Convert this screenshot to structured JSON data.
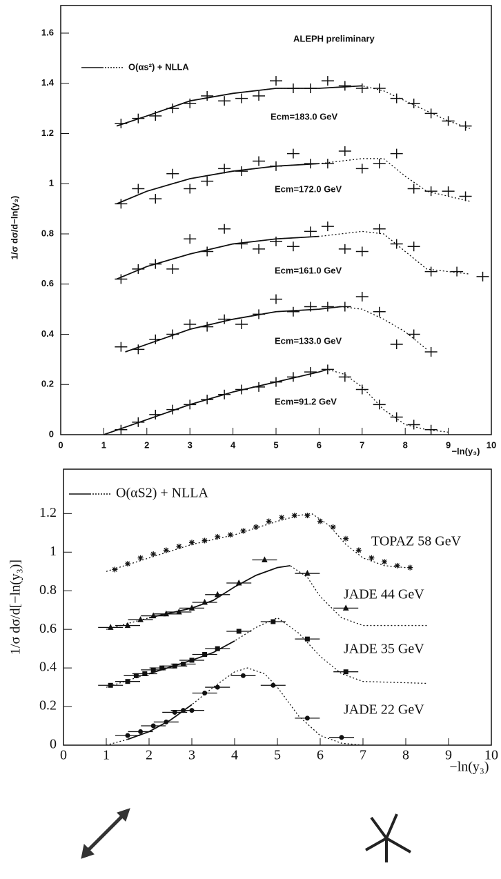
{
  "chart_data": [
    {
      "type": "scatter",
      "annotation": "ALEPH preliminary",
      "legend": "O(αs²) + NLLA",
      "x_label": "−ln(y₃)",
      "y_label": "1/σ dσ/d−ln(y₃)",
      "xlim": [
        0,
        10
      ],
      "ylim": [
        0,
        1.71
      ],
      "xticks": [
        0,
        1,
        2,
        3,
        4,
        5,
        6,
        7,
        8,
        9,
        10
      ],
      "yticks": [
        0,
        0.2,
        0.4,
        0.6,
        0.8,
        1,
        1.2,
        1.4,
        1.6
      ],
      "series": [
        {
          "name": "Ecm=183.0 GeV",
          "marker": "cross",
          "color": "#111111",
          "x": [
            1.4,
            1.8,
            2.2,
            2.6,
            3.0,
            3.4,
            3.8,
            4.2,
            4.6,
            5.0,
            5.4,
            5.8,
            6.2,
            6.6,
            7.0,
            7.4,
            7.8,
            8.2,
            8.6,
            9.0,
            9.4
          ],
          "values": [
            1.24,
            1.26,
            1.27,
            1.3,
            1.32,
            1.35,
            1.33,
            1.34,
            1.35,
            1.41,
            1.38,
            1.38,
            1.41,
            1.39,
            1.38,
            1.38,
            1.34,
            1.32,
            1.28,
            1.25,
            1.23
          ]
        },
        {
          "name": "Ecm=172.0 GeV",
          "marker": "cross",
          "color": "#111111",
          "x": [
            1.4,
            1.8,
            2.2,
            2.6,
            3.0,
            3.4,
            3.8,
            4.2,
            4.6,
            5.0,
            5.4,
            5.8,
            6.2,
            6.6,
            7.0,
            7.4,
            7.8,
            8.2,
            8.6,
            9.0,
            9.4
          ],
          "values": [
            0.92,
            0.98,
            0.94,
            1.04,
            0.98,
            1.01,
            1.06,
            1.05,
            1.09,
            1.07,
            1.12,
            1.08,
            1.08,
            1.13,
            1.06,
            1.08,
            1.12,
            0.98,
            0.97,
            0.97,
            0.95
          ]
        },
        {
          "name": "Ecm=161.0 GeV",
          "marker": "cross",
          "color": "#111111",
          "x": [
            1.4,
            1.8,
            2.2,
            2.6,
            3.0,
            3.4,
            3.8,
            4.2,
            4.6,
            5.0,
            5.4,
            5.8,
            6.2,
            6.6,
            7.0,
            7.4,
            7.8,
            8.2,
            8.6,
            9.2,
            9.8
          ],
          "values": [
            0.62,
            0.66,
            0.68,
            0.66,
            0.78,
            0.73,
            0.82,
            0.76,
            0.74,
            0.77,
            0.75,
            0.81,
            0.83,
            0.74,
            0.73,
            0.82,
            0.76,
            0.75,
            0.65,
            0.65,
            0.63
          ]
        },
        {
          "name": "Ecm=133.0 GeV",
          "marker": "cross",
          "color": "#111111",
          "x": [
            1.4,
            1.8,
            2.2,
            2.6,
            3.0,
            3.4,
            3.8,
            4.2,
            4.6,
            5.0,
            5.4,
            5.8,
            6.2,
            6.6,
            7.0,
            7.4,
            7.8,
            8.2,
            8.6
          ],
          "values": [
            0.35,
            0.34,
            0.38,
            0.4,
            0.44,
            0.43,
            0.46,
            0.44,
            0.48,
            0.54,
            0.49,
            0.51,
            0.51,
            0.51,
            0.55,
            0.49,
            0.36,
            0.4,
            0.33
          ]
        },
        {
          "name": "Ecm=91.2 GeV",
          "marker": "cross",
          "color": "#111111",
          "x": [
            1.4,
            1.8,
            2.2,
            2.6,
            3.0,
            3.4,
            3.8,
            4.2,
            4.6,
            5.0,
            5.4,
            5.8,
            6.2,
            6.6,
            7.0,
            7.4,
            7.8,
            8.2,
            8.6
          ],
          "values": [
            0.02,
            0.05,
            0.08,
            0.1,
            0.12,
            0.14,
            0.16,
            0.18,
            0.19,
            0.21,
            0.23,
            0.25,
            0.26,
            0.23,
            0.18,
            0.12,
            0.07,
            0.04,
            0.02
          ]
        }
      ],
      "curves": [
        {
          "x": [
            1.3,
            2,
            3,
            4,
            5,
            6,
            7,
            7.5,
            8,
            8.5,
            9,
            9.5
          ],
          "values": [
            1.23,
            1.27,
            1.33,
            1.36,
            1.38,
            1.38,
            1.39,
            1.37,
            1.33,
            1.29,
            1.25,
            1.22
          ],
          "fit_range": [
            1.3,
            7
          ]
        },
        {
          "x": [
            1.3,
            2,
            3,
            4,
            5,
            6,
            7,
            7.5,
            8,
            8.5,
            9,
            9.5
          ],
          "values": [
            0.92,
            0.97,
            1.02,
            1.05,
            1.07,
            1.08,
            1.1,
            1.1,
            1.03,
            0.97,
            0.95,
            0.93
          ],
          "fit_range": [
            1.3,
            6
          ]
        },
        {
          "x": [
            1.3,
            2,
            3,
            4,
            5,
            6,
            7,
            7.5,
            8,
            8.5,
            9,
            9.5
          ],
          "values": [
            0.62,
            0.67,
            0.72,
            0.76,
            0.78,
            0.79,
            0.81,
            0.8,
            0.73,
            0.66,
            0.65,
            0.64
          ],
          "fit_range": [
            1.3,
            6
          ]
        },
        {
          "x": [
            1.5,
            2,
            3,
            4,
            5,
            6,
            6.5,
            7,
            7.5,
            8,
            8.5
          ],
          "values": [
            0.33,
            0.36,
            0.42,
            0.46,
            0.49,
            0.5,
            0.51,
            0.5,
            0.46,
            0.41,
            0.34
          ],
          "fit_range": [
            1.5,
            6.5
          ]
        },
        {
          "x": [
            1.0,
            2,
            3,
            4,
            5,
            6,
            6.2,
            6.6,
            7,
            7.5,
            8,
            8.5,
            9
          ],
          "values": [
            0.0,
            0.06,
            0.12,
            0.17,
            0.21,
            0.25,
            0.26,
            0.24,
            0.19,
            0.1,
            0.04,
            0.02,
            0.01
          ],
          "fit_range": [
            1.0,
            6.2
          ]
        }
      ]
    },
    {
      "type": "scatter",
      "legend": "O(αS2) + NLLA",
      "x_label": "−ln(y₃)",
      "y_label": "1/σ dσ/d[−ln(y₃)]",
      "xlim": [
        0,
        10
      ],
      "ylim": [
        0,
        1.43
      ],
      "xticks": [
        0,
        1,
        2,
        3,
        4,
        5,
        6,
        7,
        8,
        9,
        10
      ],
      "yticks": [
        0,
        0.2,
        0.4,
        0.6,
        0.8,
        1,
        1.2
      ],
      "series": [
        {
          "name": "TOPAZ 58 GeV",
          "marker": "star",
          "color": "#111111",
          "x": [
            1.2,
            1.5,
            1.8,
            2.1,
            2.4,
            2.7,
            3.0,
            3.3,
            3.6,
            3.9,
            4.2,
            4.5,
            4.8,
            5.1,
            5.4,
            5.7,
            6.0,
            6.3,
            6.6,
            6.9,
            7.2,
            7.5,
            7.8,
            8.1
          ],
          "values": [
            0.91,
            0.94,
            0.97,
            0.99,
            1.01,
            1.03,
            1.05,
            1.06,
            1.08,
            1.09,
            1.11,
            1.13,
            1.16,
            1.18,
            1.19,
            1.19,
            1.16,
            1.13,
            1.07,
            1.01,
            0.97,
            0.95,
            0.93,
            0.92
          ]
        },
        {
          "name": "JADE 44 GeV",
          "marker": "triangle",
          "color": "#111111",
          "x": [
            1.1,
            1.5,
            1.8,
            2.1,
            2.4,
            2.7,
            3.0,
            3.3,
            3.6,
            4.1,
            4.7,
            5.7,
            6.6
          ],
          "values": [
            0.61,
            0.62,
            0.65,
            0.67,
            0.68,
            0.69,
            0.71,
            0.74,
            0.78,
            0.84,
            0.96,
            0.89,
            0.71
          ]
        },
        {
          "name": "JADE 35 GeV",
          "marker": "square",
          "color": "#111111",
          "x": [
            1.1,
            1.5,
            1.7,
            1.9,
            2.1,
            2.3,
            2.6,
            2.8,
            3.0,
            3.3,
            3.6,
            4.1,
            4.9,
            5.7,
            6.6
          ],
          "values": [
            0.31,
            0.33,
            0.36,
            0.37,
            0.39,
            0.4,
            0.41,
            0.42,
            0.44,
            0.47,
            0.5,
            0.59,
            0.64,
            0.55,
            0.38
          ]
        },
        {
          "name": "JADE 22 GeV",
          "marker": "dot",
          "color": "#111111",
          "x": [
            1.5,
            1.8,
            2.1,
            2.4,
            2.6,
            2.8,
            3.0,
            3.3,
            3.6,
            4.2,
            4.9,
            5.7,
            6.5
          ],
          "values": [
            0.05,
            0.07,
            0.1,
            0.12,
            0.17,
            0.18,
            0.18,
            0.27,
            0.3,
            0.36,
            0.31,
            0.14,
            0.04
          ]
        }
      ],
      "curves": [
        {
          "x": [
            1.0,
            2,
            3,
            4,
            5,
            5.5,
            5.8,
            6.2,
            6.6,
            7,
            7.5,
            8
          ],
          "values": [
            0.9,
            0.97,
            1.04,
            1.09,
            1.16,
            1.19,
            1.2,
            1.14,
            1.04,
            0.97,
            0.93,
            0.92
          ]
        },
        {
          "x": [
            1.0,
            2,
            3,
            3.5,
            4,
            4.5,
            5,
            5.3,
            5.7,
            6,
            6.5,
            7,
            8.5
          ],
          "values": [
            0.6,
            0.66,
            0.71,
            0.75,
            0.82,
            0.88,
            0.92,
            0.93,
            0.87,
            0.77,
            0.66,
            0.62,
            0.62
          ],
          "fit_range": [
            2,
            5.3
          ]
        },
        {
          "x": [
            1.0,
            2,
            3,
            3.5,
            4,
            4.5,
            5,
            5.5,
            6,
            6.5,
            7,
            8.5
          ],
          "values": [
            0.3,
            0.37,
            0.44,
            0.48,
            0.54,
            0.61,
            0.66,
            0.58,
            0.46,
            0.37,
            0.33,
            0.32
          ],
          "fit_range": [
            2,
            4
          ]
        },
        {
          "x": [
            1.0,
            1.5,
            2,
            2.5,
            3,
            3.5,
            4,
            4.3,
            4.7,
            5,
            5.5,
            6,
            6.5,
            7
          ],
          "values": [
            0.0,
            0.03,
            0.07,
            0.13,
            0.21,
            0.3,
            0.38,
            0.4,
            0.37,
            0.3,
            0.15,
            0.05,
            0.01,
            0.0
          ],
          "fit_range": [
            1.5,
            3
          ]
        }
      ]
    }
  ]
}
